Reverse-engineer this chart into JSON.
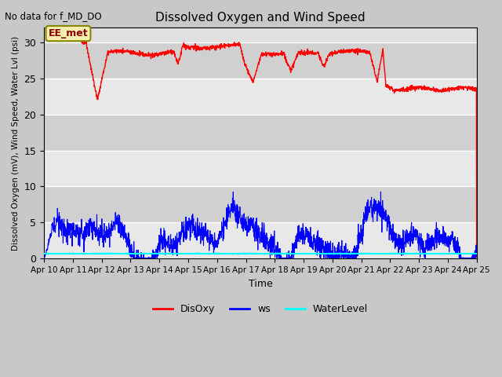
{
  "title": "Dissolved Oxygen and Wind Speed",
  "top_left_text": "No data for f_MD_DO",
  "ylabel": "Dissolved Oxygen (mV), Wind Speed, Water Lvl (psi)",
  "xlabel": "Time",
  "ylim": [
    0,
    32
  ],
  "xlim": [
    0,
    15
  ],
  "x_tick_labels": [
    "Apr 10",
    "Apr 11",
    "Apr 12",
    "Apr 13",
    "Apr 14",
    "Apr 15",
    "Apr 16",
    "Apr 17",
    "Apr 18",
    "Apr 19",
    "Apr 20",
    "Apr 21",
    "Apr 22",
    "Apr 23",
    "Apr 24",
    "Apr 25"
  ],
  "yticks": [
    0,
    5,
    10,
    15,
    20,
    25,
    30
  ],
  "fig_bg_color": "#c8c8c8",
  "plot_bg_color": "#e0e0e0",
  "station_label": "EE_met",
  "disoxy_color": "red",
  "ws_color": "blue",
  "water_color": "cyan",
  "band1_color": "#d0d0d0",
  "band2_color": "#e8e8e8"
}
